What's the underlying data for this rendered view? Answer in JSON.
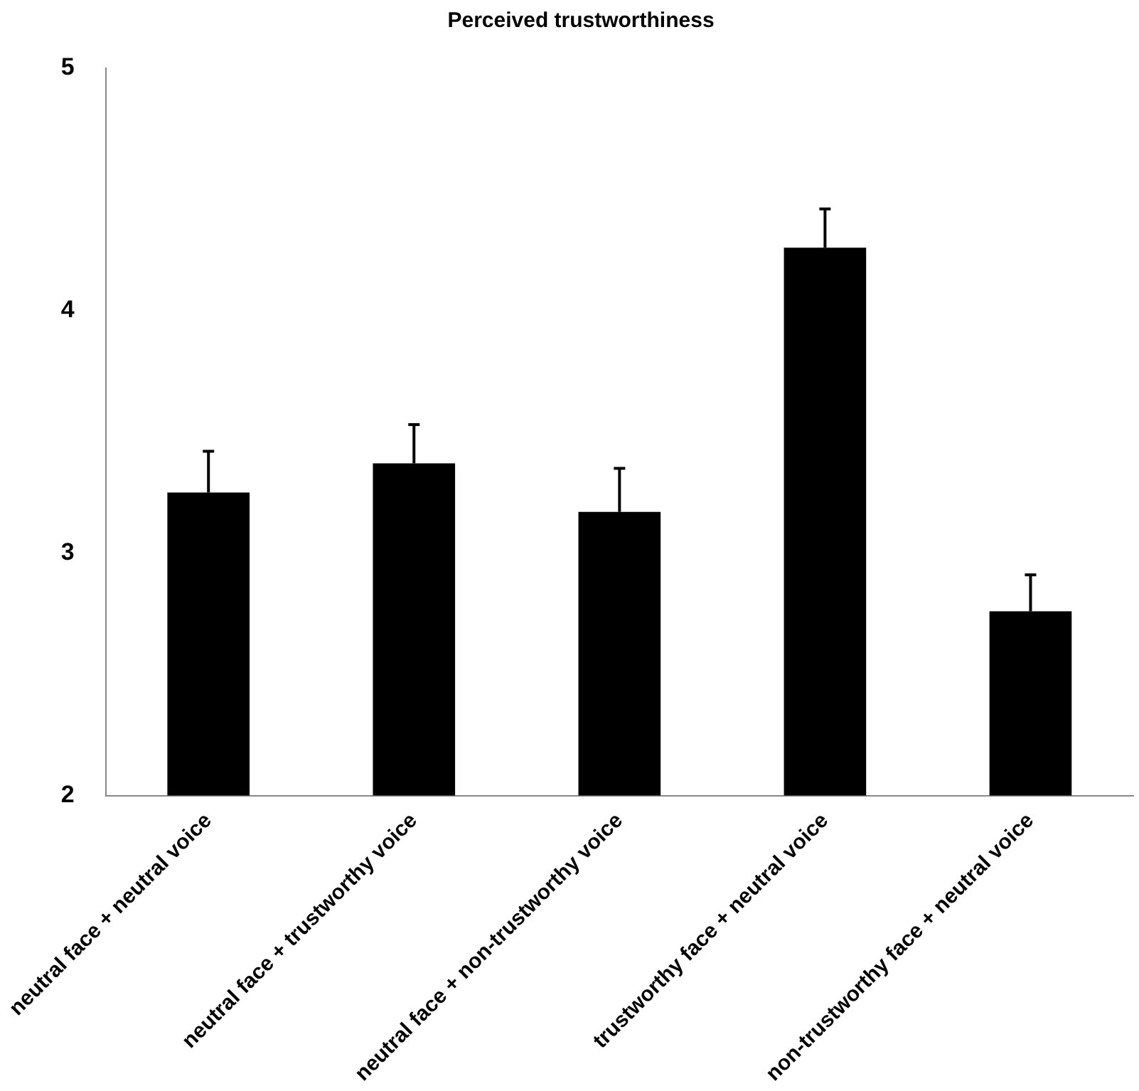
{
  "chart_data": {
    "type": "bar",
    "title": "Perceived trustworthiness",
    "categories": [
      "neutral face + neutral voice",
      "neutral face + trustworthy voice",
      "neutral face + non-trustworthy voice",
      "trustworthy face + neutral voice",
      "non-trustworthy face + neutral voice"
    ],
    "values": [
      3.25,
      3.37,
      3.17,
      4.26,
      2.76
    ],
    "errors": [
      [
        3.25,
        3.42
      ],
      [
        3.37,
        3.53
      ],
      [
        3.17,
        3.35
      ],
      [
        4.26,
        4.42
      ],
      [
        2.76,
        2.91
      ]
    ],
    "color": "#000000",
    "ylim": [
      2,
      5
    ],
    "yticks": [
      2,
      3,
      4,
      5
    ],
    "grid": false,
    "legend": false
  }
}
